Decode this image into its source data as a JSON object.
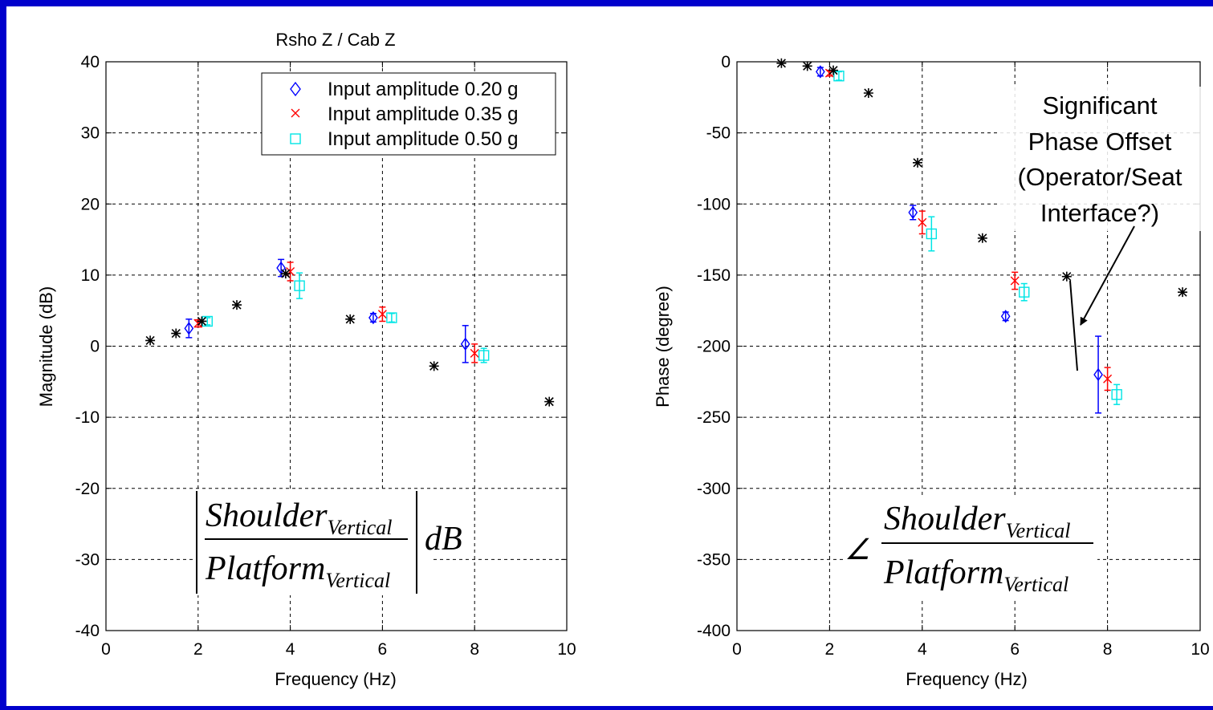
{
  "chart_data": [
    {
      "type": "scatter",
      "title": "Rsho Z / Cab Z",
      "xlabel": "Frequency (Hz)",
      "ylabel": "Magnitude (dB)",
      "xlim": [
        0,
        10
      ],
      "ylim": [
        -40,
        40
      ],
      "xticks": [
        0,
        2,
        4,
        6,
        8,
        10
      ],
      "yticks": [
        40,
        30,
        20,
        10,
        0,
        -10,
        -20,
        -30,
        -40
      ],
      "grid": true,
      "legend_position": "top-right",
      "formula": {
        "numerator": "Shoulder",
        "denominator": "Platform",
        "subscript": "Vertical",
        "suffix": "dB"
      },
      "series": [
        {
          "name": "Input amplitude 0.20 g",
          "marker": "diamond",
          "color": "#0000ff",
          "points": [
            {
              "x": 1.8,
              "y": 2.5,
              "err": 1.3
            },
            {
              "x": 3.8,
              "y": 11.0,
              "err": 1.2
            },
            {
              "x": 5.8,
              "y": 4.0,
              "err": 0.6
            },
            {
              "x": 7.8,
              "y": 0.3,
              "err": 2.6
            }
          ]
        },
        {
          "name": "Input amplitude 0.35 g",
          "marker": "x",
          "color": "#ff0000",
          "points": [
            {
              "x": 2.0,
              "y": 3.2,
              "err": 0.5
            },
            {
              "x": 4.0,
              "y": 10.5,
              "err": 1.3
            },
            {
              "x": 6.0,
              "y": 4.5,
              "err": 1.0
            },
            {
              "x": 8.0,
              "y": -1.0,
              "err": 1.3
            }
          ]
        },
        {
          "name": "Input amplitude 0.50 g",
          "marker": "square",
          "color": "#00e5e5",
          "points": [
            {
              "x": 2.2,
              "y": 3.5,
              "err": 0.5
            },
            {
              "x": 4.2,
              "y": 8.5,
              "err": 1.8
            },
            {
              "x": 6.2,
              "y": 4.0,
              "err": 0.6
            },
            {
              "x": 8.2,
              "y": -1.3,
              "err": 1.0
            }
          ]
        },
        {
          "name": "",
          "marker": "asterisk",
          "color": "#000000",
          "points": [
            {
              "x": 0.96,
              "y": 0.8
            },
            {
              "x": 1.52,
              "y": 1.8
            },
            {
              "x": 2.08,
              "y": 3.5
            },
            {
              "x": 2.84,
              "y": 5.8
            },
            {
              "x": 3.9,
              "y": 10.2
            },
            {
              "x": 5.3,
              "y": 3.8
            },
            {
              "x": 7.12,
              "y": -2.8
            },
            {
              "x": 9.62,
              "y": -7.8
            }
          ]
        }
      ]
    },
    {
      "type": "scatter",
      "title": "",
      "xlabel": "Frequency (Hz)",
      "ylabel": "Phase (degree)",
      "xlim": [
        0,
        10
      ],
      "ylim": [
        -400,
        0
      ],
      "xticks": [
        0,
        2,
        4,
        6,
        8,
        10
      ],
      "yticks": [
        0,
        -50,
        -100,
        -150,
        -200,
        -250,
        -300,
        -350,
        -400
      ],
      "grid": true,
      "formula": {
        "numerator": "Shoulder",
        "denominator": "Platform",
        "subscript": "Vertical",
        "angle_symbol": "∠"
      },
      "annotation": [
        "Significant",
        "Phase Offset",
        "(Operator/Seat",
        "Interface?)"
      ],
      "series": [
        {
          "name": "Input amplitude 0.20 g",
          "marker": "diamond",
          "color": "#0000ff",
          "points": [
            {
              "x": 1.8,
              "y": -7,
              "err": 3
            },
            {
              "x": 3.8,
              "y": -106,
              "err": 5
            },
            {
              "x": 5.8,
              "y": -179,
              "err": 3
            },
            {
              "x": 7.8,
              "y": -220,
              "err": 27
            }
          ]
        },
        {
          "name": "Input amplitude 0.35 g",
          "marker": "x",
          "color": "#ff0000",
          "points": [
            {
              "x": 2.0,
              "y": -8,
              "err": 2
            },
            {
              "x": 4.0,
              "y": -113,
              "err": 8
            },
            {
              "x": 6.0,
              "y": -154,
              "err": 6
            },
            {
              "x": 8.0,
              "y": -223,
              "err": 8
            }
          ]
        },
        {
          "name": "Input amplitude 0.50 g",
          "marker": "square",
          "color": "#00e5e5",
          "points": [
            {
              "x": 2.2,
              "y": -10,
              "err": 3
            },
            {
              "x": 4.2,
              "y": -121,
              "err": 12
            },
            {
              "x": 6.2,
              "y": -162,
              "err": 6
            },
            {
              "x": 8.2,
              "y": -234,
              "err": 7
            }
          ]
        },
        {
          "name": "",
          "marker": "asterisk",
          "color": "#000000",
          "points": [
            {
              "x": 0.96,
              "y": -1
            },
            {
              "x": 1.52,
              "y": -3
            },
            {
              "x": 2.08,
              "y": -6
            },
            {
              "x": 2.84,
              "y": -22
            },
            {
              "x": 3.9,
              "y": -71
            },
            {
              "x": 5.3,
              "y": -124
            },
            {
              "x": 7.12,
              "y": -151
            },
            {
              "x": 9.62,
              "y": -162
            }
          ]
        }
      ]
    }
  ]
}
